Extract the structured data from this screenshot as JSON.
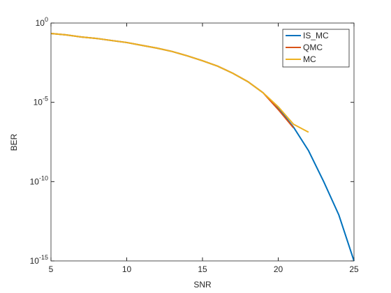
{
  "chart_data": {
    "type": "line",
    "xlabel": "SNR",
    "ylabel": "BER",
    "log_y": true,
    "legend": "top-right",
    "x": [
      5,
      6,
      7,
      8,
      9,
      10,
      11,
      12,
      13,
      14,
      15,
      16,
      17,
      18,
      19,
      20,
      21,
      22,
      23,
      24,
      25
    ],
    "series": [
      {
        "name": "IS_MC",
        "color": "#0072BD",
        "values": [
          0.22,
          0.178,
          0.132,
          0.107,
          0.079,
          0.059,
          0.039,
          0.026,
          0.016,
          0.0085,
          0.0042,
          0.0019,
          0.00068,
          0.0002,
          4e-05,
          4.3e-06,
          2.8e-07,
          8.9e-09,
          1e-10,
          7.9e-13,
          1e-15
        ]
      },
      {
        "name": "QMC",
        "color": "#D95319",
        "values": [
          0.22,
          0.178,
          0.132,
          0.107,
          0.079,
          0.059,
          0.039,
          0.026,
          0.016,
          0.0085,
          0.0042,
          0.0019,
          0.00068,
          0.0002,
          4e-05,
          3.5e-06,
          2.5e-07,
          null,
          null,
          null,
          null
        ]
      },
      {
        "name": "MC",
        "color": "#EDB120",
        "values": [
          0.22,
          0.178,
          0.132,
          0.107,
          0.079,
          0.059,
          0.039,
          0.026,
          0.016,
          0.0085,
          0.0042,
          0.0019,
          0.00068,
          0.0002,
          4e-05,
          5.2e-06,
          4.2e-07,
          1.3e-07,
          null,
          null,
          null
        ]
      }
    ],
    "xlim": [
      5,
      25
    ],
    "xticks": [
      5,
      10,
      15,
      20,
      25
    ],
    "ylim": [
      1e-15,
      1
    ],
    "yticks": [
      {
        "value": 1e-15,
        "label": "10",
        "exp": "-15"
      },
      {
        "value": 1e-10,
        "label": "10",
        "exp": "-10"
      },
      {
        "value": 1e-05,
        "label": "10",
        "exp": "-5"
      },
      {
        "value": 1,
        "label": "10",
        "exp": "0"
      }
    ]
  }
}
